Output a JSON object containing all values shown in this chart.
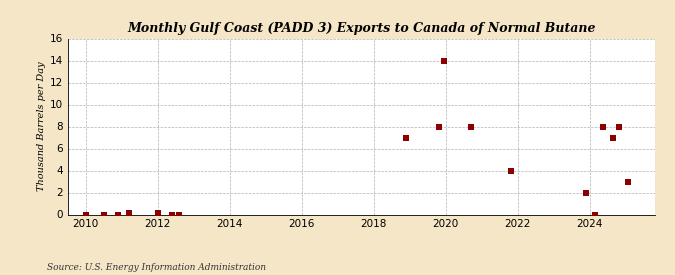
{
  "title": "Monthly Gulf Coast (PADD 3) Exports to Canada of Normal Butane",
  "ylabel": "Thousand Barrels per Day",
  "source": "Source: U.S. Energy Information Administration",
  "background_color": "#f5e6c8",
  "plot_background_color": "#ffffff",
  "marker_color": "#8b0000",
  "marker_size": 4,
  "ylim": [
    0,
    16
  ],
  "yticks": [
    0,
    2,
    4,
    6,
    8,
    10,
    12,
    14,
    16
  ],
  "xlim": [
    2009.5,
    2025.8
  ],
  "xticks": [
    2010,
    2012,
    2014,
    2016,
    2018,
    2020,
    2022,
    2024
  ],
  "data_points": [
    [
      2010.0,
      0.0
    ],
    [
      2010.5,
      0.0
    ],
    [
      2010.9,
      0.0
    ],
    [
      2011.2,
      0.1
    ],
    [
      2012.0,
      0.1
    ],
    [
      2012.4,
      0.0
    ],
    [
      2012.6,
      0.0
    ],
    [
      2018.9,
      7.0
    ],
    [
      2019.8,
      8.0
    ],
    [
      2019.95,
      14.0
    ],
    [
      2020.7,
      8.0
    ],
    [
      2021.8,
      4.0
    ],
    [
      2023.9,
      2.0
    ],
    [
      2024.15,
      0.0
    ],
    [
      2024.35,
      8.0
    ],
    [
      2024.65,
      7.0
    ],
    [
      2024.82,
      8.0
    ],
    [
      2025.05,
      3.0
    ]
  ]
}
